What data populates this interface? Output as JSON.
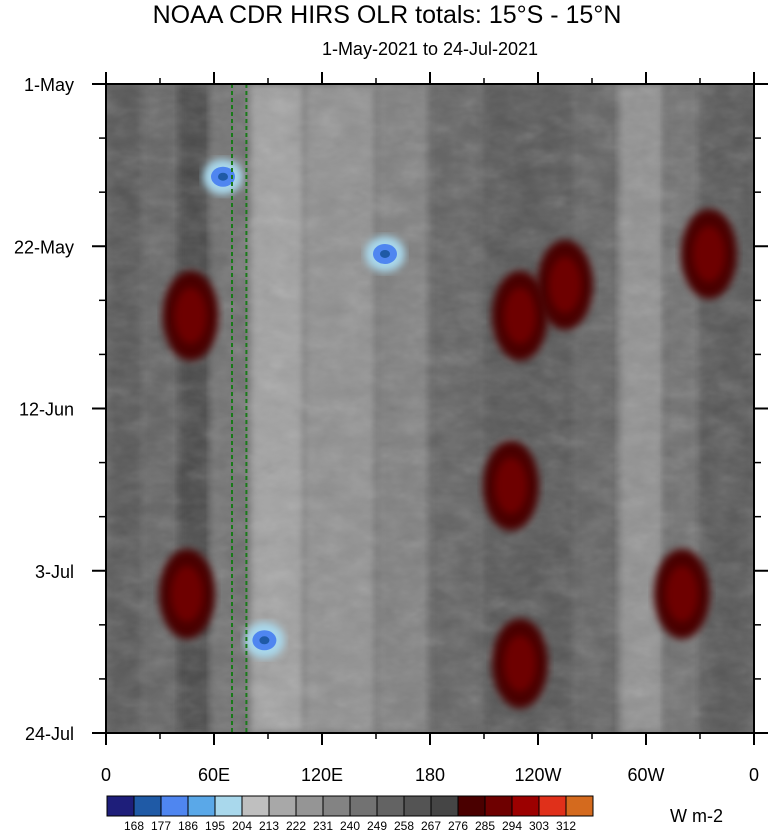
{
  "chart_data": {
    "type": "heatmap",
    "title": "NOAA CDR HIRS OLR totals: 15°S - 15°N",
    "subtitle": "1-May-2021 to 24-Jul-2021",
    "x_ticks": [
      "0",
      "60E",
      "120E",
      "180",
      "120W",
      "60W",
      "0"
    ],
    "x_tick_values": [
      0,
      60,
      120,
      180,
      240,
      300,
      360
    ],
    "x_range": [
      0,
      360
    ],
    "y_ticks": [
      "1-May",
      "22-May",
      "12-Jun",
      "3-Jul",
      "24-Jul"
    ],
    "y_tick_values": [
      0,
      21,
      42,
      63,
      84
    ],
    "y_range": [
      0,
      84
    ],
    "y_inverted": true,
    "colorbar": {
      "levels": [
        "168",
        "177",
        "186",
        "195",
        "204",
        "213",
        "222",
        "231",
        "240",
        "249",
        "258",
        "267",
        "276",
        "285",
        "294",
        "303",
        "312"
      ],
      "colors": [
        "#1e1e7a",
        "#1f5aa6",
        "#4f86f0",
        "#5aa8e8",
        "#a9d8ec",
        "#bfbfbf",
        "#a8a8a8",
        "#959595",
        "#838383",
        "#727272",
        "#636363",
        "#545454",
        "#454545",
        "#4a0000",
        "#6e0000",
        "#9c0000",
        "#e0301a",
        "#d46a1e"
      ],
      "units": "W m-2"
    },
    "reference_lines_lon": [
      70,
      78
    ],
    "features": [
      {
        "lon_center": 65,
        "day_center": 12,
        "level": "low",
        "note": "blue"
      },
      {
        "lon_center": 47,
        "day_center": 30,
        "level": "high",
        "note": "red"
      },
      {
        "lon_center": 45,
        "day_center": 66,
        "level": "high",
        "note": "red"
      },
      {
        "lon_center": 88,
        "day_center": 72,
        "level": "low",
        "note": "blue"
      },
      {
        "lon_center": 230,
        "day_center": 30,
        "level": "high",
        "note": "red"
      },
      {
        "lon_center": 255,
        "day_center": 26,
        "level": "high",
        "note": "red"
      },
      {
        "lon_center": 225,
        "day_center": 52,
        "level": "high",
        "note": "red"
      },
      {
        "lon_center": 230,
        "day_center": 75,
        "level": "high",
        "note": "red"
      },
      {
        "lon_center": 320,
        "day_center": 66,
        "level": "high",
        "note": "red"
      },
      {
        "lon_center": 335,
        "day_center": 22,
        "level": "high",
        "note": "red"
      },
      {
        "lon_center": 155,
        "day_center": 22,
        "level": "low",
        "note": "blue"
      }
    ]
  }
}
